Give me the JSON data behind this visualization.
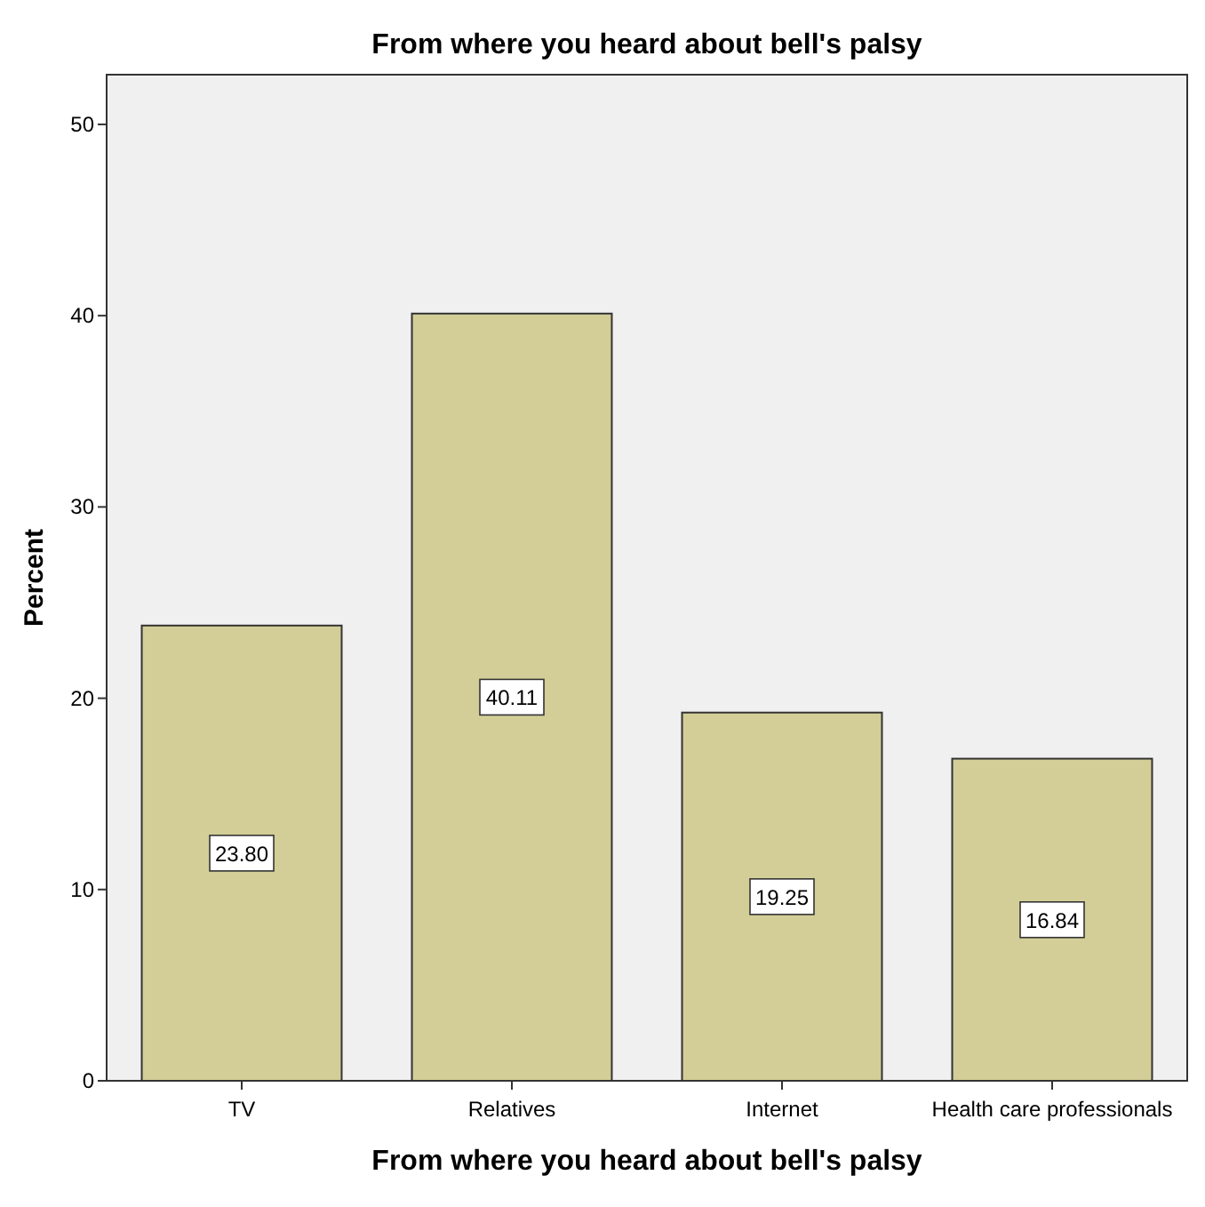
{
  "chart_data": {
    "type": "bar",
    "title": "From where you heard about bell's palsy",
    "xlabel": "From where you heard about bell's palsy",
    "ylabel": "Percent",
    "categories": [
      "TV",
      "Relatives",
      "Internet",
      "Health care professionals"
    ],
    "values": [
      23.8,
      40.11,
      19.25,
      16.84
    ],
    "color": "#d3ce97",
    "ylim": [
      0,
      52.6
    ],
    "yticks": [
      0,
      10,
      20,
      30,
      40,
      50
    ],
    "grid": false,
    "value_labels": [
      "23.80",
      "40.11",
      "19.25",
      "16.84"
    ]
  }
}
